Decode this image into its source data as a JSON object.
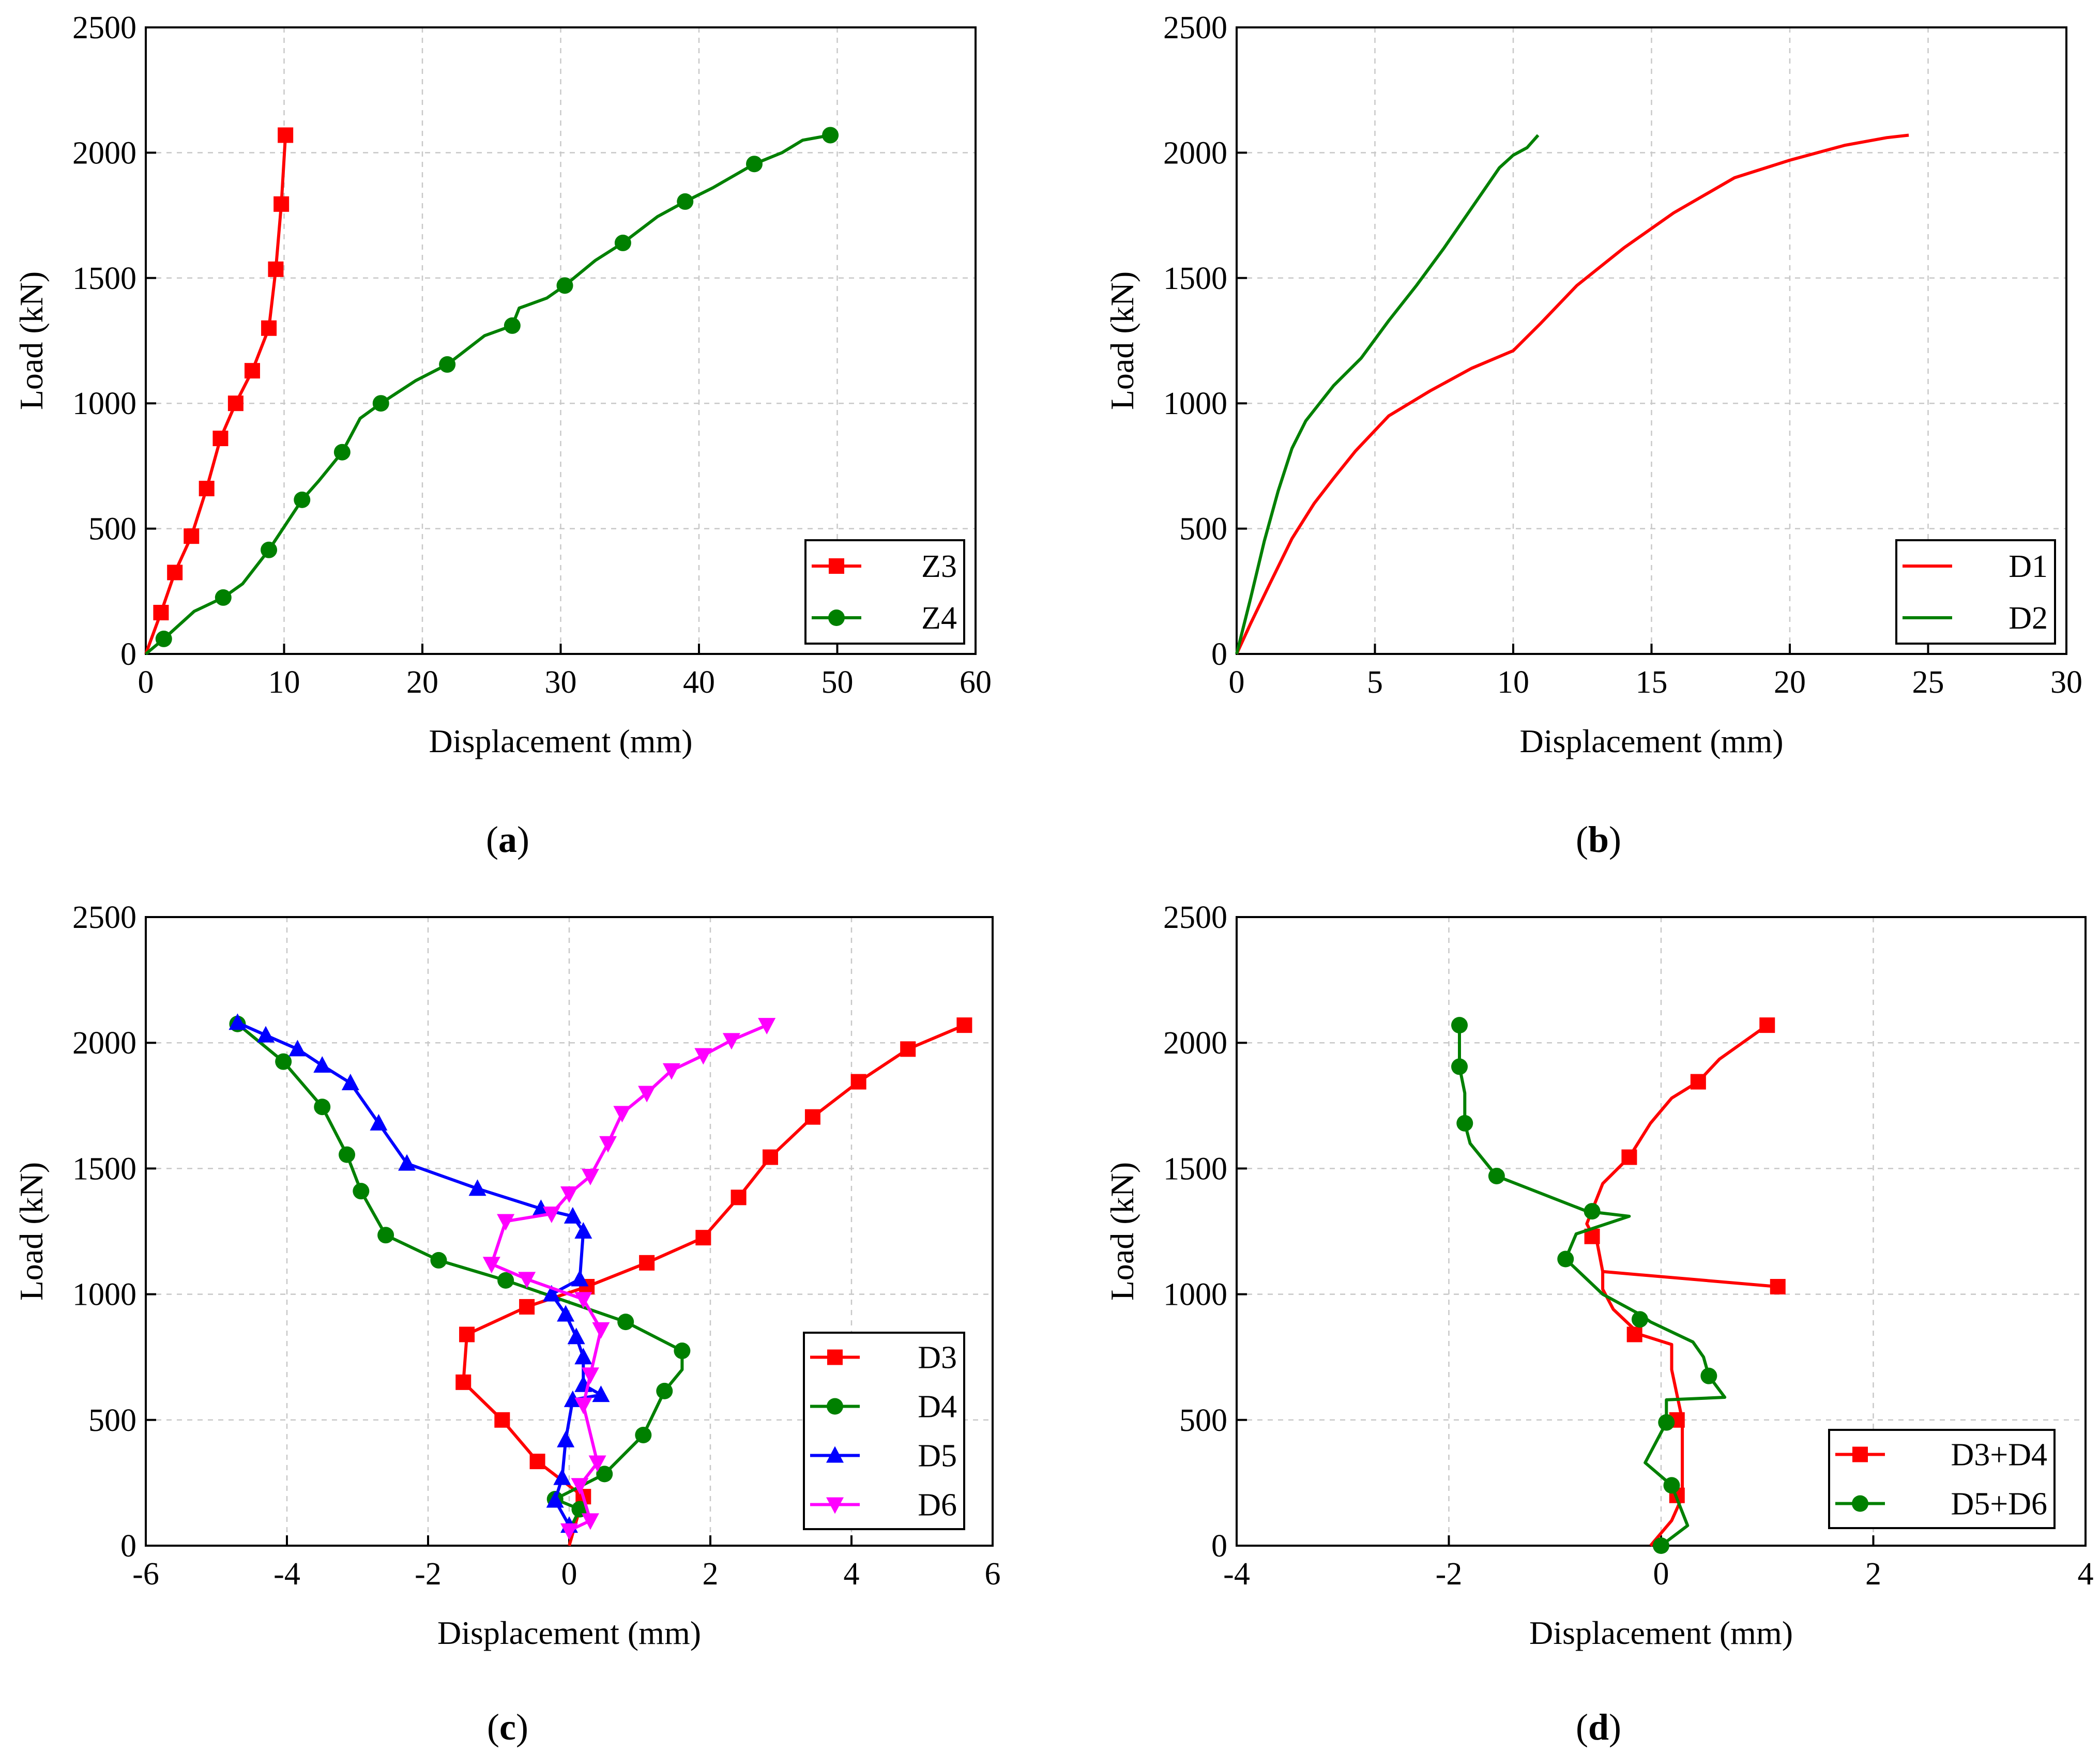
{
  "chart_data": [
    {
      "id": "a",
      "type": "line",
      "panel_label": "a",
      "xlabel": "Displacement (mm)",
      "ylabel": "Load (kN)",
      "xlim": [
        0,
        60
      ],
      "ylim": [
        0,
        2500
      ],
      "xticks": [
        0,
        10,
        20,
        30,
        40,
        50,
        60
      ],
      "yticks": [
        0,
        500,
        1000,
        1500,
        2000,
        2500
      ],
      "grid": true,
      "legend_position": "bottom-right",
      "series": [
        {
          "name": "Z3",
          "color": "#ff0000",
          "marker": "square",
          "x": [
            0,
            1.1,
            2.1,
            3.3,
            4.4,
            5.4,
            6.5,
            7.7,
            8.9,
            9.4,
            9.8,
            10.1
          ],
          "y": [
            0,
            165,
            325,
            470,
            660,
            860,
            1000,
            1130,
            1300,
            1535,
            1795,
            2070
          ],
          "markers_x": [
            1.1,
            2.1,
            3.3,
            4.4,
            5.4,
            6.5,
            7.7,
            8.9,
            9.4,
            9.8,
            10.1
          ],
          "markers_y": [
            165,
            325,
            470,
            660,
            860,
            1000,
            1130,
            1300,
            1535,
            1795,
            2070
          ]
        },
        {
          "name": "Z4",
          "color": "#008000",
          "marker": "circle",
          "x": [
            0,
            1.3,
            3.5,
            5.6,
            7,
            8.9,
            11.3,
            12.5,
            14.2,
            15.5,
            17,
            19.5,
            21.8,
            24.5,
            26.5,
            27,
            29,
            30.3,
            32.5,
            34.5,
            37,
            39,
            41,
            44,
            46,
            47.5,
            49.5
          ],
          "y": [
            0,
            60,
            170,
            225,
            280,
            415,
            615,
            690,
            805,
            940,
            1000,
            1090,
            1155,
            1270,
            1310,
            1380,
            1420,
            1470,
            1570,
            1640,
            1745,
            1805,
            1860,
            1955,
            2000,
            2050,
            2070
          ],
          "markers_x": [
            1.3,
            5.6,
            8.9,
            11.3,
            14.2,
            17,
            21.8,
            26.5,
            30.3,
            34.5,
            39,
            44,
            49.5
          ],
          "markers_y": [
            60,
            225,
            415,
            615,
            805,
            1000,
            1155,
            1310,
            1470,
            1640,
            1805,
            1955,
            2070
          ]
        }
      ]
    },
    {
      "id": "b",
      "type": "line",
      "panel_label": "b",
      "xlabel": "Displacement (mm)",
      "ylabel": "Load (kN)",
      "xlim": [
        0,
        30
      ],
      "ylim": [
        0,
        2500
      ],
      "xticks": [
        0,
        5,
        10,
        15,
        20,
        25,
        30
      ],
      "yticks": [
        0,
        500,
        1000,
        1500,
        2000,
        2500
      ],
      "grid": true,
      "legend_position": "bottom-right",
      "series": [
        {
          "name": "D1",
          "color": "#ff0000",
          "marker": "none",
          "x": [
            0,
            0.5,
            1.2,
            2,
            2.8,
            3.5,
            4.3,
            5.5,
            7,
            8.5,
            10,
            11,
            12.3,
            14,
            15.8,
            18,
            20,
            22,
            23.5,
            24.3
          ],
          "y": [
            0,
            120,
            280,
            460,
            600,
            700,
            810,
            950,
            1050,
            1140,
            1210,
            1320,
            1470,
            1620,
            1760,
            1900,
            1970,
            2030,
            2060,
            2070
          ],
          "markers_x": [],
          "markers_y": []
        },
        {
          "name": "D2",
          "color": "#008000",
          "marker": "none",
          "x": [
            0,
            0.5,
            1,
            1.5,
            2,
            2.5,
            3,
            3.5,
            4.5,
            5.5,
            6.5,
            7.5,
            8.5,
            9.5,
            10,
            10.5,
            10.9
          ],
          "y": [
            0,
            220,
            450,
            650,
            820,
            930,
            1000,
            1070,
            1180,
            1330,
            1470,
            1620,
            1780,
            1940,
            1990,
            2020,
            2070
          ],
          "markers_x": [],
          "markers_y": []
        }
      ]
    },
    {
      "id": "c",
      "type": "line",
      "panel_label": "c",
      "xlabel": "Displacement (mm)",
      "ylabel": "Load (kN)",
      "xlim": [
        -6,
        6
      ],
      "ylim": [
        0,
        2500
      ],
      "xticks": [
        -6,
        -4,
        -2,
        0,
        2,
        4,
        6
      ],
      "yticks": [
        0,
        500,
        1000,
        1500,
        2000,
        2500
      ],
      "grid": true,
      "legend_position": "bottom-right",
      "series": [
        {
          "name": "D3",
          "color": "#ff0000",
          "marker": "square",
          "x": [
            0,
            -0.45,
            -0.95,
            -1.5,
            -1.45,
            -0.6,
            0.25,
            1.1,
            1.9,
            2.4,
            2.85,
            3.45,
            4.1,
            4.8,
            5.6
          ],
          "y": [
            0,
            335,
            500,
            650,
            840,
            950,
            1030,
            1125,
            1225,
            1385,
            1545,
            1705,
            1845,
            1975,
            2070
          ],
          "markers_x": [
            0.2,
            -0.45,
            -0.95,
            -1.5,
            -1.45,
            -0.6,
            0.25,
            1.1,
            1.9,
            2.4,
            2.85,
            3.45,
            4.1,
            4.8,
            5.6
          ],
          "markers_y": [
            195,
            335,
            500,
            650,
            840,
            950,
            1030,
            1125,
            1225,
            1385,
            1545,
            1705,
            1845,
            1975,
            2070
          ],
          "path_x": [
            0,
            0.2,
            -0.45,
            -0.95,
            -1.5,
            -1.45,
            -0.6,
            0.25,
            1.1,
            1.9,
            2.4,
            2.85,
            3.45,
            4.1,
            4.8,
            5.6
          ],
          "path_y": [
            0,
            195,
            335,
            500,
            650,
            840,
            950,
            1030,
            1125,
            1225,
            1385,
            1545,
            1705,
            1845,
            1975,
            2070
          ]
        },
        {
          "name": "D4",
          "color": "#008000",
          "marker": "circle",
          "x": [
            0,
            0.15,
            -0.2,
            0.5,
            1.05,
            1.35,
            1.6,
            0.8,
            -0.9,
            -1.85,
            -2.6,
            -2.95,
            -3.15,
            -3.5,
            -4.05,
            -4.7
          ],
          "y": [
            60,
            145,
            185,
            285,
            440,
            615,
            775,
            890,
            1055,
            1135,
            1235,
            1410,
            1555,
            1745,
            1925,
            2075
          ],
          "markers_x": [
            0.15,
            -0.2,
            0.5,
            1.05,
            1.35,
            1.6,
            0.8,
            -0.9,
            -1.85,
            -2.6,
            -2.95,
            -3.15,
            -3.5,
            -4.05,
            -4.7
          ],
          "markers_y": [
            145,
            185,
            285,
            440,
            615,
            775,
            890,
            1055,
            1135,
            1235,
            1410,
            1555,
            1745,
            1925,
            2075
          ],
          "path_x": [
            0,
            0.15,
            -0.2,
            0.5,
            1.05,
            1.35,
            1.6,
            1.6,
            0.8,
            -0.9,
            -1.85,
            -2.6,
            -2.95,
            -3.15,
            -3.5,
            -4.05,
            -4.7
          ],
          "path_y": [
            60,
            145,
            185,
            285,
            440,
            615,
            700,
            775,
            890,
            1055,
            1135,
            1235,
            1410,
            1555,
            1745,
            1925,
            2075
          ],
          "markers_shown": true
        },
        {
          "name": "D5",
          "color": "#0000ff",
          "marker": "triangle-up",
          "x": [
            0,
            -0.2,
            -0.1,
            -0.05,
            0.05,
            0.45,
            0.2,
            0.2,
            0.1,
            -0.05,
            -0.25,
            0.15,
            0.2,
            0.05,
            -0.4,
            -1.3,
            -2.3,
            -2.7,
            -3.1,
            -3.5,
            -3.85,
            -4.3,
            -4.7
          ],
          "y": [
            80,
            180,
            270,
            420,
            580,
            600,
            640,
            750,
            830,
            920,
            1000,
            1060,
            1250,
            1310,
            1340,
            1420,
            1520,
            1680,
            1840,
            1910,
            1975,
            2030,
            2080
          ],
          "markers_x": [
            0,
            -0.2,
            -0.1,
            -0.05,
            0.05,
            0.45,
            0.2,
            0.2,
            0.1,
            -0.05,
            -0.25,
            0.15,
            0.2,
            0.05,
            -0.4,
            -1.3,
            -2.3,
            -2.7,
            -3.1,
            -3.5,
            -3.85,
            -4.3,
            -4.7
          ],
          "markers_y": [
            80,
            180,
            270,
            420,
            580,
            600,
            640,
            750,
            830,
            920,
            1000,
            1060,
            1250,
            1310,
            1340,
            1420,
            1520,
            1680,
            1840,
            1910,
            1975,
            2030,
            2080
          ],
          "path_x": [
            0,
            -0.2,
            -0.1,
            -0.05,
            0.05,
            0.45,
            0.2,
            0.2,
            0.1,
            -0.05,
            -0.25,
            0.15,
            0.2,
            0.05,
            -0.4,
            -1.3,
            -2.3,
            -2.7,
            -3.1,
            -3.5,
            -3.85,
            -4.3,
            -4.7
          ],
          "path_y": [
            80,
            180,
            270,
            420,
            580,
            600,
            640,
            750,
            830,
            920,
            1000,
            1060,
            1250,
            1310,
            1340,
            1420,
            1520,
            1680,
            1840,
            1910,
            1975,
            2030,
            2080
          ]
        },
        {
          "name": "D6",
          "color": "#ff00ff",
          "marker": "triangle-down",
          "x": [
            0,
            0.3,
            0.15,
            0.4,
            0.2,
            0.3,
            0.45,
            0.2,
            -0.6,
            -1.1,
            -0.9,
            -0.25,
            0,
            0.3,
            0.55,
            0.75,
            1.1,
            1.45,
            1.9,
            2.3,
            2.8
          ],
          "y": [
            60,
            100,
            240,
            330,
            560,
            680,
            860,
            980,
            1060,
            1120,
            1290,
            1320,
            1400,
            1470,
            1600,
            1720,
            1800,
            1890,
            1950,
            2010,
            2070
          ],
          "markers_x": [
            0,
            0.3,
            0.15,
            0.4,
            0.2,
            0.3,
            0.45,
            0.2,
            -0.6,
            -1.1,
            -0.9,
            -0.25,
            0,
            0.3,
            0.55,
            0.75,
            1.1,
            1.45,
            1.9,
            2.3,
            2.8
          ],
          "markers_y": [
            60,
            100,
            240,
            330,
            560,
            680,
            860,
            980,
            1060,
            1120,
            1290,
            1320,
            1400,
            1470,
            1600,
            1720,
            1800,
            1890,
            1950,
            2010,
            2070
          ],
          "path_x": [
            0,
            0.3,
            0.15,
            0.4,
            0.2,
            0.3,
            0.45,
            0.2,
            -0.6,
            -1.1,
            -0.9,
            -0.25,
            0,
            0.3,
            0.55,
            0.75,
            1.1,
            1.45,
            1.9,
            2.3,
            2.8
          ],
          "path_y": [
            60,
            100,
            240,
            330,
            560,
            680,
            860,
            980,
            1060,
            1120,
            1290,
            1320,
            1400,
            1470,
            1600,
            1720,
            1800,
            1890,
            1950,
            2010,
            2070
          ]
        }
      ]
    },
    {
      "id": "d",
      "type": "line",
      "panel_label": "d",
      "xlabel": "Displacement (mm)",
      "ylabel": "Load (kN)",
      "xlim": [
        -4,
        4
      ],
      "ylim": [
        0,
        2500
      ],
      "xticks": [
        -4,
        -2,
        0,
        2,
        4
      ],
      "yticks": [
        0,
        500,
        1000,
        1500,
        2000,
        2500
      ],
      "grid": true,
      "legend_position": "bottom-right",
      "series": [
        {
          "name": "D3+D4",
          "color": "#ff0000",
          "marker": "square",
          "path_x": [
            -0.1,
            0.1,
            0.2,
            0.2,
            0.2,
            0.15,
            0.1,
            0.1,
            -0.2,
            -0.45,
            -0.55,
            -0.55,
            1.1,
            -0.55,
            -0.6,
            -0.7,
            -0.55,
            -0.3,
            -0.1,
            0.1,
            0.35,
            0.55,
            1.0
          ],
          "path_y": [
            0,
            100,
            195,
            300,
            500,
            600,
            700,
            800,
            840,
            940,
            1020,
            1090,
            1030,
            1090,
            1200,
            1280,
            1440,
            1545,
            1680,
            1780,
            1845,
            1935,
            2070
          ],
          "markers_x": [
            0.15,
            0.15,
            -0.25,
            1.1,
            -0.65,
            -0.3,
            0.35,
            1.0
          ],
          "markers_y": [
            200,
            500,
            840,
            1030,
            1230,
            1545,
            1845,
            2070
          ]
        },
        {
          "name": "D5+D6",
          "color": "#008000",
          "marker": "circle",
          "path_x": [
            0,
            0.25,
            0.1,
            -0.15,
            0.05,
            0.05,
            0.6,
            0.45,
            0.4,
            0.3,
            -0.1,
            -0.2,
            -0.55,
            -0.9,
            -0.8,
            -0.3,
            -0.7,
            -1.55,
            -1.8,
            -1.85,
            -1.85,
            -1.9,
            -1.9
          ],
          "path_y": [
            0,
            80,
            240,
            330,
            490,
            580,
            590,
            675,
            750,
            810,
            890,
            920,
            1000,
            1140,
            1240,
            1310,
            1330,
            1470,
            1600,
            1680,
            1800,
            1905,
            2070
          ],
          "markers_x": [
            0,
            0.1,
            0.05,
            0.45,
            -0.2,
            -0.9,
            -0.65,
            -1.55,
            -1.85,
            -1.9,
            -1.9
          ],
          "markers_y": [
            0,
            240,
            490,
            675,
            900,
            1140,
            1330,
            1470,
            1680,
            1905,
            2070
          ]
        }
      ]
    }
  ]
}
